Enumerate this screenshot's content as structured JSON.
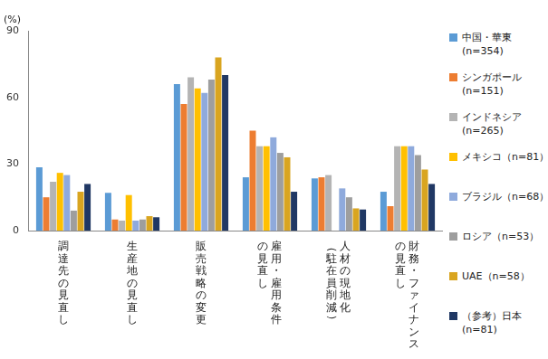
{
  "chart_data": {
    "type": "bar",
    "ylabel": "(%)",
    "categories": [
      [
        "調達先の見直し"
      ],
      [
        "生産地の見直し"
      ],
      [
        "販売戦略の変更"
      ],
      [
        "雇用・雇用条件",
        "の見直し"
      ],
      [
        "人材の現地化",
        "（駐在員削減）"
      ],
      [
        "財務・ファイナンス",
        "の見直し"
      ]
    ],
    "series": [
      {
        "name": "中国・華東\n(n=354)",
        "color": "#5b9bd5",
        "values": [
          28.5,
          17,
          66,
          24,
          23.5,
          17.5
        ]
      },
      {
        "name": "シンガポール\n(n=151)",
        "color": "#ed7d31",
        "values": [
          15,
          5,
          57,
          45,
          24,
          11
        ]
      },
      {
        "name": "インドネシア\n(n=265)",
        "color": "#b4b4b4",
        "values": [
          22,
          4.5,
          69,
          38,
          25,
          38
        ]
      },
      {
        "name": "メキシコ（n=81）",
        "color": "#ffc000",
        "values": [
          26,
          16,
          64,
          38,
          0,
          38
        ]
      },
      {
        "name": "ブラジル（n=68）",
        "color": "#8faadc",
        "values": [
          25,
          4.5,
          62,
          42,
          19,
          38
        ]
      },
      {
        "name": "ロシア（n=53）",
        "color": "#9e9e9e",
        "values": [
          9,
          5,
          68,
          35,
          15,
          34
        ]
      },
      {
        "name": "UAE（n=58）",
        "color": "#d9a520",
        "values": [
          17.5,
          6.5,
          78,
          33,
          10,
          27.5
        ]
      },
      {
        "name": "（参考）日本\n(n=81)",
        "color": "#203864",
        "values": [
          21,
          6,
          70,
          17.5,
          9.5,
          21
        ]
      }
    ],
    "ylim": [
      0,
      90
    ],
    "yticks": [
      0,
      30,
      60,
      90
    ],
    "grid": false,
    "legend": "right"
  }
}
